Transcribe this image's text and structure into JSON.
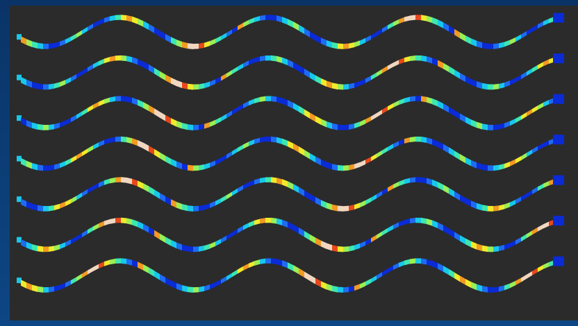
{
  "background": {
    "frame_color": "#0b3a72",
    "panel_color": "#2b2b2b"
  },
  "visualization": {
    "kind": "wave-ribbons",
    "ribbon_count": 7,
    "colormap": "jet",
    "colormap_stops": [
      "#0a2bd6",
      "#1e6cf0",
      "#18c8ea",
      "#3fe7b0",
      "#9bef56",
      "#f0ea2c",
      "#f39a22",
      "#e8491c",
      "#f2d7c0"
    ]
  }
}
